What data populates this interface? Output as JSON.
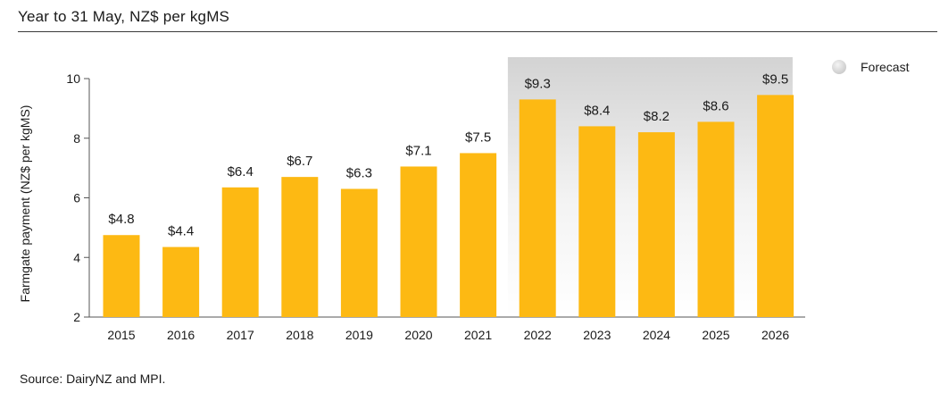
{
  "header": {
    "title": "Year to 31 May, NZ$ per kgMS"
  },
  "legend": {
    "forecast_label": "Forecast"
  },
  "footer": {
    "source": "Source: DairyNZ and MPI."
  },
  "colors": {
    "bar": "#FDB913",
    "forecast_shade": "#d9d9d9"
  },
  "chart_data": {
    "type": "bar",
    "title": "Year to 31 May, NZ$ per kgMS",
    "xlabel": "",
    "ylabel": "Farmgate payment (NZ$ per kgMS)",
    "ylim": [
      2,
      10
    ],
    "yticks": [
      2,
      4,
      6,
      8,
      10
    ],
    "categories": [
      "2015",
      "2016",
      "2017",
      "2018",
      "2019",
      "2020",
      "2021",
      "2022",
      "2023",
      "2024",
      "2025",
      "2026"
    ],
    "values": [
      4.75,
      4.35,
      6.35,
      6.7,
      6.3,
      7.05,
      7.5,
      9.3,
      8.4,
      8.2,
      8.55,
      9.45
    ],
    "data_labels": [
      "$4.8",
      "$4.4",
      "$6.4",
      "$6.7",
      "$6.3",
      "$7.1",
      "$7.5",
      "$9.3",
      "$8.4",
      "$8.2",
      "$8.6",
      "$9.5"
    ],
    "forecast_range": [
      "2022",
      "2026"
    ],
    "grid": false,
    "legend_position": "top-right"
  }
}
